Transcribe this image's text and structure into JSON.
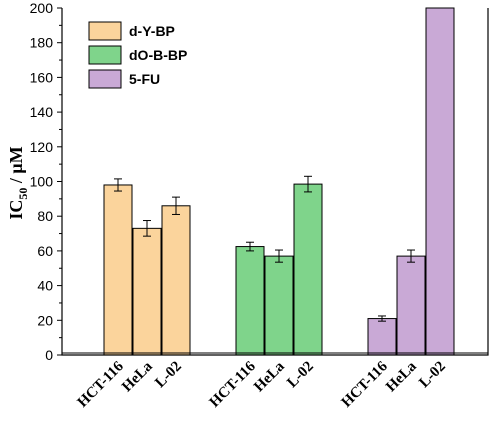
{
  "chart_data": {
    "type": "bar",
    "title": "",
    "ylabel": "IC50 / μM",
    "ylabel_main": "IC",
    "ylabel_sub": "50",
    "ylabel_unit": " / μM",
    "xlabel": "",
    "ylim": [
      0,
      200
    ],
    "yticks": [
      0,
      20,
      40,
      60,
      80,
      100,
      120,
      140,
      160,
      180,
      200
    ],
    "grid": false,
    "legend_position": "top-left",
    "series": [
      {
        "name": "d-Y-BP",
        "color": "#FBD49C",
        "categories": [
          "HCT-116",
          "HeLa",
          "L-02"
        ],
        "values": [
          98,
          73,
          86
        ],
        "errors": [
          3.5,
          4.5,
          5
        ]
      },
      {
        "name": "dO-B-BP",
        "color": "#7FD48B",
        "categories": [
          "HCT-116",
          "HeLa",
          "L-02"
        ],
        "values": [
          62.5,
          57,
          98.5
        ],
        "errors": [
          2.5,
          3.5,
          4.5
        ]
      },
      {
        "name": "5-FU",
        "color": "#C9A9D6",
        "categories": [
          "HCT-116",
          "HeLa",
          "L-02"
        ],
        "values": [
          21,
          57,
          200
        ],
        "errors": [
          1.5,
          3.5,
          null
        ]
      }
    ]
  }
}
